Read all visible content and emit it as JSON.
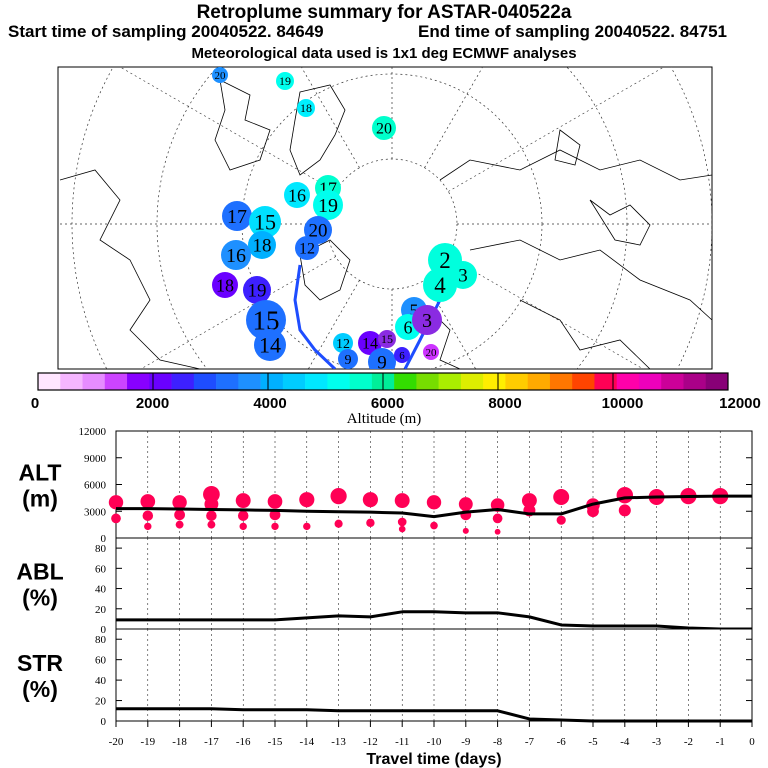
{
  "header": {
    "title": "Retroplume summary for ASTAR-040522a",
    "start_time": "Start time of sampling 20040522. 84649",
    "end_time": "End time of sampling 20040522. 84751",
    "met_data": "Meteorological data used is 1x1 deg ECMWF analyses"
  },
  "map": {
    "plume_labels": [
      {
        "label": "20",
        "color": "#1e90ff"
      },
      {
        "label": "19",
        "color": "#00ffee"
      },
      {
        "label": "18",
        "color": "#00f0ff"
      },
      {
        "label": "20",
        "color": "#00ffcc"
      },
      {
        "label": "17",
        "color": "#00ffd0"
      },
      {
        "label": "16",
        "color": "#00e8ff"
      },
      {
        "label": "19",
        "color": "#00ffee"
      },
      {
        "label": "17",
        "color": "#1e70ff"
      },
      {
        "label": "15",
        "color": "#00e0ff"
      },
      {
        "label": "20",
        "color": "#1e70ff"
      },
      {
        "label": "18",
        "color": "#00b0ff"
      },
      {
        "label": "16",
        "color": "#1e90ff"
      },
      {
        "label": "12",
        "color": "#1e70ff"
      },
      {
        "label": "18",
        "color": "#6a00ff"
      },
      {
        "label": "19",
        "color": "#3d20ff"
      },
      {
        "label": "15",
        "color": "#1e70ff"
      },
      {
        "label": "14",
        "color": "#1e70ff"
      },
      {
        "label": "12",
        "color": "#00ccff"
      },
      {
        "label": "9",
        "color": "#1e70ff"
      },
      {
        "label": "14",
        "color": "#6a00ff"
      },
      {
        "label": "15",
        "color": "#8a2be2"
      },
      {
        "label": "9",
        "color": "#1e70ff"
      },
      {
        "label": "6",
        "color": "#3d20ff"
      },
      {
        "label": "20",
        "color": "#cc33ff"
      },
      {
        "label": "2",
        "color": "#00ffdd"
      },
      {
        "label": "4",
        "color": "#00ffdd"
      },
      {
        "label": "3",
        "color": "#00ffdd"
      },
      {
        "label": "5",
        "color": "#1e90ff"
      },
      {
        "label": "6",
        "color": "#00ffee"
      },
      {
        "label": "3",
        "color": "#8a2be2"
      }
    ]
  },
  "colorbar": {
    "tick_labels": [
      "0",
      "2000",
      "4000",
      "6000",
      "8000",
      "10000",
      "12000"
    ],
    "axis_label": "Altitude (m)",
    "colors": [
      "#ffe6ff",
      "#f5b6ff",
      "#e68cff",
      "#cc44ff",
      "#8800ff",
      "#6a00ff",
      "#3d20ff",
      "#1e4dff",
      "#1e70ff",
      "#1e90ff",
      "#00b0ff",
      "#00ccff",
      "#00e8ff",
      "#00ffee",
      "#00ffcc",
      "#00ee99",
      "#33dd00",
      "#77dd00",
      "#aaee00",
      "#ddee00",
      "#ffee00",
      "#ffcc00",
      "#ffaa00",
      "#ff7700",
      "#ff4400",
      "#ff0055",
      "#ff00aa",
      "#ee00bb",
      "#cc0099",
      "#aa0088",
      "#880077"
    ]
  },
  "chart_data": [
    {
      "type": "line",
      "id": "ALT",
      "ylabel": "ALT\n(m)",
      "ylabel_line1": "ALT",
      "ylabel_line2": "(m)",
      "ylim": [
        0,
        12000
      ],
      "yticks": [
        "0",
        "3000",
        "6000",
        "9000",
        "12000"
      ],
      "x": [
        -20,
        -19,
        -18,
        -17,
        -16,
        -15,
        -14,
        -13,
        -12,
        -11,
        -10,
        -9,
        -8,
        -7,
        -6,
        -5,
        -4,
        -3,
        -2,
        -1,
        0
      ],
      "series": [
        {
          "name": "mean altitude",
          "values": [
            3300,
            3300,
            3250,
            3200,
            3150,
            3100,
            3000,
            2950,
            2900,
            2800,
            2400,
            2900,
            3200,
            2700,
            2700,
            3800,
            4500,
            4600,
            4650,
            4700,
            4700
          ]
        }
      ],
      "markers": [
        {
          "x": -20,
          "y": 4000
        },
        {
          "x": -20,
          "y": 2200
        },
        {
          "x": -19,
          "y": 4100
        },
        {
          "x": -19,
          "y": 2500
        },
        {
          "x": -19,
          "y": 1300
        },
        {
          "x": -18,
          "y": 4000
        },
        {
          "x": -18,
          "y": 2600
        },
        {
          "x": -18,
          "y": 1500
        },
        {
          "x": -17,
          "y": 4900
        },
        {
          "x": -17,
          "y": 3800
        },
        {
          "x": -17,
          "y": 2500
        },
        {
          "x": -17,
          "y": 1500
        },
        {
          "x": -16,
          "y": 4200
        },
        {
          "x": -16,
          "y": 2500
        },
        {
          "x": -16,
          "y": 1300
        },
        {
          "x": -15,
          "y": 4100
        },
        {
          "x": -15,
          "y": 2600
        },
        {
          "x": -15,
          "y": 1300
        },
        {
          "x": -14,
          "y": 4300
        },
        {
          "x": -14,
          "y": 1300
        },
        {
          "x": -13,
          "y": 4700
        },
        {
          "x": -13,
          "y": 1600
        },
        {
          "x": -12,
          "y": 4300
        },
        {
          "x": -12,
          "y": 1700
        },
        {
          "x": -11,
          "y": 4200
        },
        {
          "x": -11,
          "y": 1800
        },
        {
          "x": -11,
          "y": 1000
        },
        {
          "x": -10,
          "y": 4000
        },
        {
          "x": -10,
          "y": 1400
        },
        {
          "x": -9,
          "y": 3800
        },
        {
          "x": -9,
          "y": 2600
        },
        {
          "x": -9,
          "y": 800
        },
        {
          "x": -8,
          "y": 3700
        },
        {
          "x": -8,
          "y": 2200
        },
        {
          "x": -8,
          "y": 700
        },
        {
          "x": -7,
          "y": 4200
        },
        {
          "x": -7,
          "y": 3100
        },
        {
          "x": -6,
          "y": 4600
        },
        {
          "x": -6,
          "y": 2000
        },
        {
          "x": -5,
          "y": 3700
        },
        {
          "x": -5,
          "y": 3000
        },
        {
          "x": -4,
          "y": 4800
        },
        {
          "x": -4,
          "y": 3100
        },
        {
          "x": -3,
          "y": 4600
        },
        {
          "x": -2,
          "y": 4700
        },
        {
          "x": -1,
          "y": 4700
        }
      ],
      "marker_color": "#ff0055"
    },
    {
      "type": "line",
      "id": "ABL",
      "ylabel": "ABL\n(%)",
      "ylabel_line1": "ABL",
      "ylabel_line2": "(%)",
      "ylim": [
        0,
        90
      ],
      "yticks": [
        "0",
        "20",
        "40",
        "60",
        "80"
      ],
      "x": [
        -20,
        -19,
        -18,
        -17,
        -16,
        -15,
        -14,
        -13,
        -12,
        -11,
        -10,
        -9,
        -8,
        -7,
        -6,
        -5,
        -4,
        -3,
        -2,
        -1,
        0
      ],
      "series": [
        {
          "name": "ABL fraction",
          "values": [
            9,
            9,
            9,
            9,
            9,
            9,
            11,
            13,
            12,
            17,
            17,
            16,
            16,
            12,
            4,
            3,
            3,
            3,
            1,
            0,
            0
          ]
        }
      ]
    },
    {
      "type": "line",
      "id": "STR",
      "ylabel": "STR\n(%)",
      "ylabel_line1": "STR",
      "ylabel_line2": "(%)",
      "ylim": [
        0,
        90
      ],
      "yticks": [
        "0",
        "20",
        "40",
        "60",
        "80"
      ],
      "x": [
        -20,
        -19,
        -18,
        -17,
        -16,
        -15,
        -14,
        -13,
        -12,
        -11,
        -10,
        -9,
        -8,
        -7,
        -6,
        -5,
        -4,
        -3,
        -2,
        -1,
        0
      ],
      "series": [
        {
          "name": "stratospheric fraction",
          "values": [
            12,
            12,
            12,
            12,
            11,
            11,
            11,
            10,
            10,
            10,
            10,
            10,
            10,
            2,
            1,
            0,
            0,
            0,
            0,
            0,
            0
          ]
        }
      ]
    }
  ],
  "xaxis": {
    "label": "Travel time (days)",
    "tick_labels": [
      "-20",
      "-19",
      "-18",
      "-17",
      "-16",
      "-15",
      "-14",
      "-13",
      "-12",
      "-11",
      "-10",
      "-9",
      "-8",
      "-7",
      "-6",
      "-5",
      "-4",
      "-3",
      "-2",
      "-1",
      "0"
    ]
  }
}
